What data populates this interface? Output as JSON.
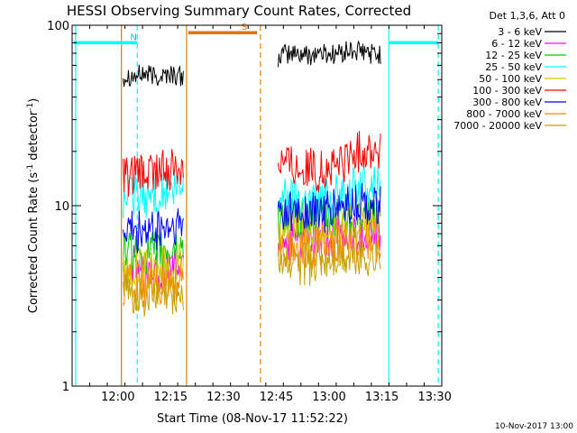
{
  "chart_data": {
    "type": "line",
    "title": "HESSI Observing Summary Count Rates, Corrected",
    "xlabel": "Start Time (08-Nov-17 11:52:22)",
    "ylabel_prefix": "Corrected Count Rate (s",
    "ylabel_sup1": "-1",
    "ylabel_mid": " detector",
    "ylabel_sup2": "-1",
    "ylabel_suffix": ")",
    "yscale": "log",
    "ylim": [
      1,
      100
    ],
    "xlim_minutes": [
      707,
      812
    ],
    "x_ticks": [
      {
        "minute": 720,
        "label": "12:00"
      },
      {
        "minute": 735,
        "label": "12:15"
      },
      {
        "minute": 750,
        "label": "12:30"
      },
      {
        "minute": 765,
        "label": "12:45"
      },
      {
        "minute": 780,
        "label": "13:00"
      },
      {
        "minute": 795,
        "label": "13:15"
      },
      {
        "minute": 810,
        "label": "13:30"
      }
    ],
    "y_ticks": [
      {
        "value": 1,
        "label": "1"
      },
      {
        "value": 10,
        "label": "10"
      },
      {
        "value": 100,
        "label": "100"
      }
    ],
    "legend_header": "Det 1,3,6, Att 0",
    "legend_position": "right",
    "series": [
      {
        "name": "3 - 6 keV",
        "color": "#000000",
        "segments": [
          {
            "x": [
              721.5,
              723,
              725,
              727,
              729,
              731,
              733,
              735,
              737,
              738.6
            ],
            "y": [
              52,
              53,
              52,
              54,
              53,
              52,
              53,
              54,
              52,
              51
            ]
          },
          {
            "x": [
              765.5,
              768,
              771,
              774,
              777,
              780,
              783,
              786,
              789,
              792,
              794.6
            ],
            "y": [
              67,
              69,
              70,
              68,
              71,
              69,
              70,
              72,
              71,
              70,
              68
            ]
          }
        ]
      },
      {
        "name": "6 - 12 keV",
        "color": "#ff00ff",
        "segments": [
          {
            "x": [
              721.5,
              725,
              729,
              733,
              737,
              738.6
            ],
            "y": [
              4.5,
              4.6,
              4.4,
              4.5,
              4.6,
              4.7
            ]
          },
          {
            "x": [
              765.5,
              770,
              775,
              780,
              785,
              790,
              794.6
            ],
            "y": [
              6.5,
              6.6,
              6.4,
              6.5,
              6.8,
              7.0,
              6.9
            ]
          }
        ]
      },
      {
        "name": "12 - 25 keV",
        "color": "#00cc00",
        "segments": [
          {
            "x": [
              721.5,
              725,
              729,
              733,
              737,
              738.6
            ],
            "y": [
              5.5,
              5.6,
              5.4,
              5.5,
              5.7,
              5.8
            ]
          },
          {
            "x": [
              765.5,
              770,
              775,
              780,
              785,
              790,
              794.6
            ],
            "y": [
              8.5,
              8.4,
              8.3,
              8.5,
              8.6,
              8.8,
              8.7
            ]
          }
        ]
      },
      {
        "name": "25 - 50 keV",
        "color": "#00ffff",
        "segments": [
          {
            "x": [
              721.5,
              725,
              729,
              733,
              737,
              738.6
            ],
            "y": [
              11.0,
              11.5,
              11.2,
              11.6,
              12.0,
              12.3
            ]
          },
          {
            "x": [
              765.5,
              770,
              775,
              780,
              785,
              790,
              794.6
            ],
            "y": [
              11.5,
              11.0,
              10.8,
              11.2,
              12.0,
              13.0,
              13.5
            ]
          }
        ]
      },
      {
        "name": "50 - 100 keV",
        "color": "#cccc00",
        "segments": [
          {
            "x": [
              721.5,
              725,
              729,
              733,
              737,
              738.6
            ],
            "y": [
              4.4,
              4.5,
              4.3,
              4.5,
              4.6,
              4.7
            ]
          },
          {
            "x": [
              765.5,
              770,
              775,
              780,
              785,
              790,
              794.6
            ],
            "y": [
              7.5,
              7.4,
              7.2,
              7.5,
              7.8,
              8.0,
              7.9
            ]
          }
        ]
      },
      {
        "name": "100 - 300 keV",
        "color": "#ff0000",
        "segments": [
          {
            "x": [
              721.5,
              725,
              729,
              733,
              737,
              738.6
            ],
            "y": [
              14.0,
              14.5,
              15.0,
              15.5,
              16.5,
              17.0
            ]
          },
          {
            "x": [
              765.5,
              768,
              771,
              774,
              777,
              780,
              783,
              786,
              789,
              792,
              794.6
            ],
            "y": [
              18.5,
              17.5,
              16.5,
              16.0,
              15.5,
              15.8,
              17.0,
              18.5,
              20.0,
              20.5,
              20.0
            ]
          }
        ]
      },
      {
        "name": "300 - 800 keV",
        "color": "#0000ff",
        "segments": [
          {
            "x": [
              721.5,
              725,
              729,
              733,
              737,
              738.6
            ],
            "y": [
              7.0,
              7.2,
              7.0,
              7.3,
              7.5,
              7.6
            ]
          },
          {
            "x": [
              765.5,
              770,
              775,
              780,
              785,
              790,
              794.6
            ],
            "y": [
              9.5,
              9.2,
              9.0,
              9.3,
              9.8,
              10.3,
              10.2
            ]
          }
        ]
      },
      {
        "name": "800 - 7000 keV",
        "color": "#ff8800",
        "segments": [
          {
            "x": [
              721.5,
              725,
              729,
              733,
              737,
              738.6
            ],
            "y": [
              3.6,
              3.7,
              3.5,
              3.6,
              3.7,
              3.8
            ]
          },
          {
            "x": [
              765.5,
              770,
              775,
              780,
              785,
              790,
              794.6
            ],
            "y": [
              6.0,
              5.9,
              5.8,
              6.0,
              6.2,
              6.4,
              6.3
            ]
          }
        ]
      },
      {
        "name": "7000 - 20000 keV",
        "color": "#c8a000",
        "segments": [
          {
            "x": [
              721.5,
              725,
              729,
              733,
              737,
              738.6
            ],
            "y": [
              3.2,
              3.3,
              3.1,
              3.2,
              3.3,
              3.4
            ]
          },
          {
            "x": [
              765.5,
              770,
              775,
              780,
              785,
              790,
              794.6
            ],
            "y": [
              5.0,
              4.8,
              4.7,
              5.0,
              5.2,
              5.3,
              5.2
            ]
          }
        ]
      }
    ],
    "vertical_lines": [
      {
        "minute": 708,
        "color": "#00ffff",
        "dash": false
      },
      {
        "minute": 725.5,
        "color": "#00ffff",
        "dash": true
      },
      {
        "minute": 721,
        "color": "#e08000",
        "dash": false
      },
      {
        "minute": 739.5,
        "color": "#e08000",
        "dash": false
      },
      {
        "minute": 760.5,
        "color": "#e08000",
        "dash": true
      },
      {
        "minute": 797,
        "color": "#00ffff",
        "dash": false
      },
      {
        "minute": 811,
        "color": "#00ffff",
        "dash": true
      }
    ],
    "bars": [
      {
        "label": "N",
        "color": "#00ffff",
        "label_color": "#00c8c8",
        "segments": [
          [
            707.5,
            725.5
          ],
          [
            797,
            811
          ]
        ],
        "y_value": 80
      },
      {
        "label": "S",
        "color": "#e87000",
        "label_color": "#e87000",
        "segments": [
          [
            740,
            759.5
          ]
        ],
        "y_value": 91
      }
    ],
    "footer_date": "10-Nov-2017 13:00"
  }
}
